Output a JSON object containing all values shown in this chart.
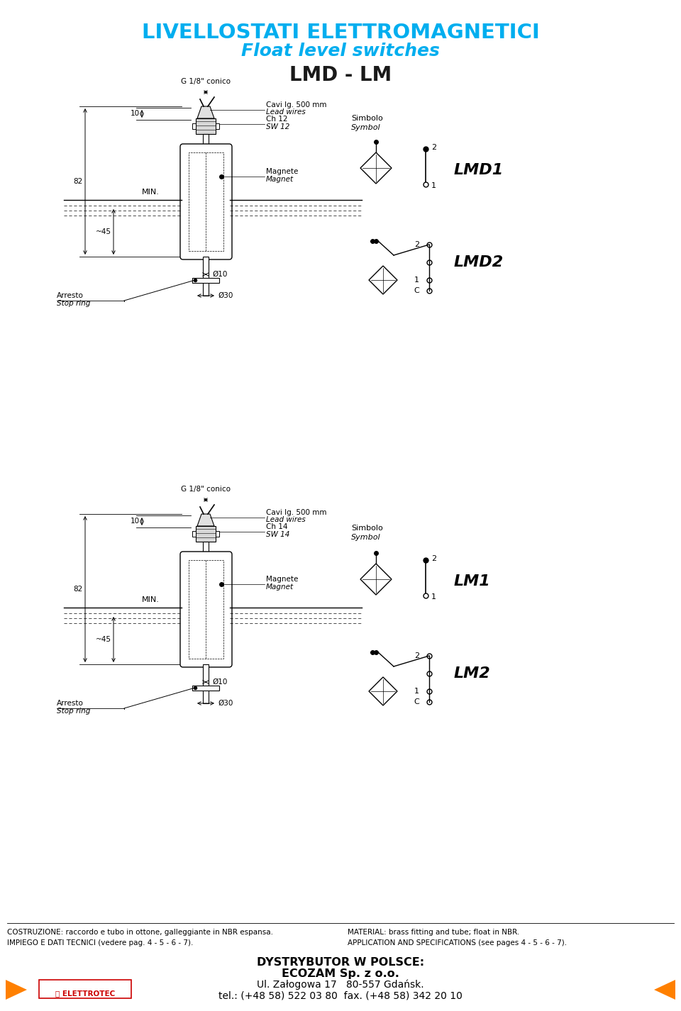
{
  "title1": "LIVELLOSTATI ELETTROMAGNETICI",
  "title2": "Float level switches",
  "title3": "LMD - LM",
  "title1_color": "#00AEEF",
  "title2_color": "#00AEEF",
  "title3_color": "#1a1a1a",
  "bg_color": "#ffffff",
  "footer_line1_left": "COSTRUZIONE: raccordo e tubo in ottone, galleggiante in NBR espansa.",
  "footer_line1_right": "MATERIAL: brass fitting and tube; float in NBR.",
  "footer_line2_left": "IMPIEGO E DATI TECNICI (vedere pag. 4 - 5 - 6 - 7).",
  "footer_line2_right": "APPLICATION AND SPECIFICATIONS (see pages 4 - 5 - 6 - 7).",
  "footer_distributor": "DYSTRYBUTOR W POLSCE:",
  "footer_company": "ECOZAM Sp. z o.o.",
  "footer_address": "Ul. Załogowa 17   80-557 Gdańsk.",
  "footer_tel": "tel.: (+48 58) 522 03 80  fax. (+48 58) 342 20 10"
}
